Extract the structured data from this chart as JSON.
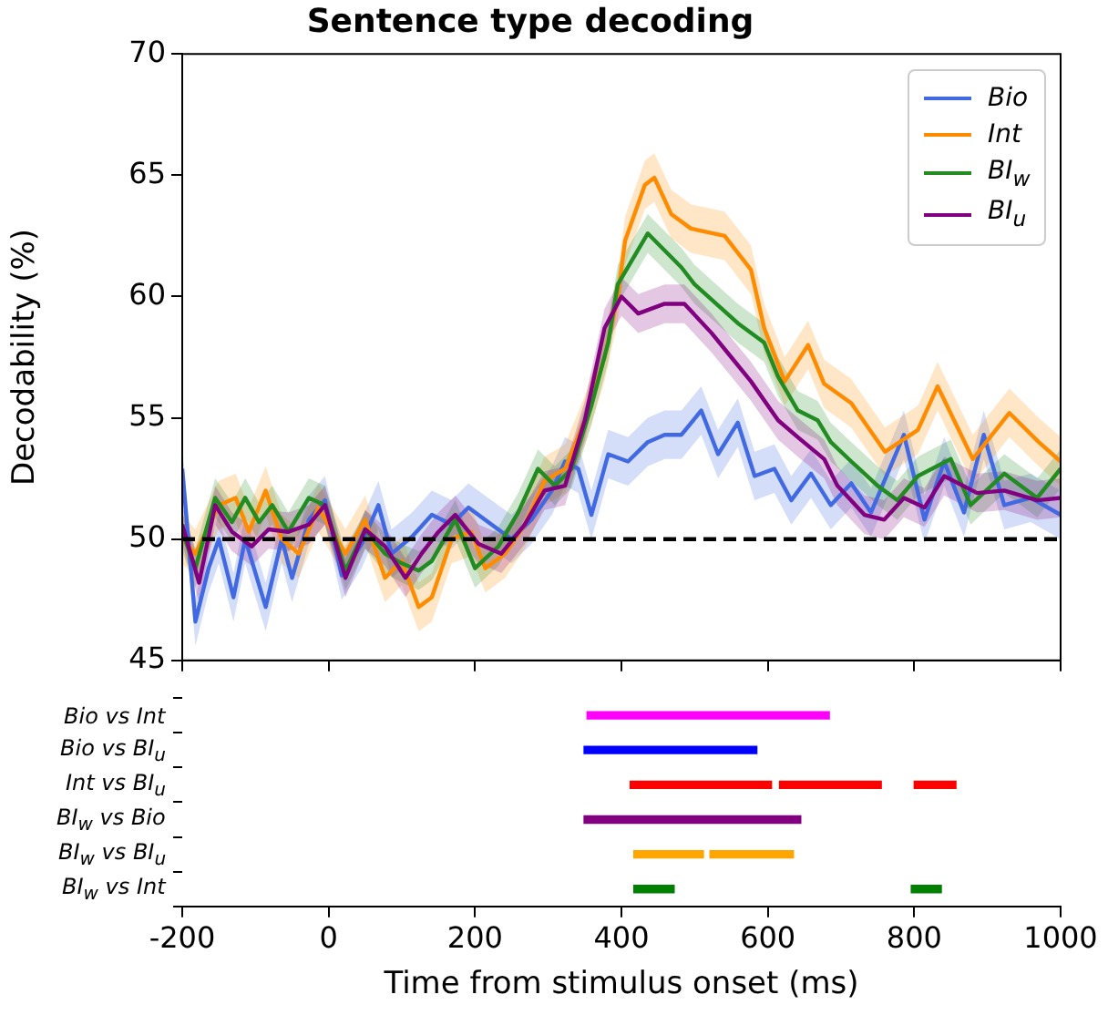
{
  "chart_data": [
    {
      "type": "line",
      "title": "Sentence type decoding",
      "ylabel": "Decodability (%)",
      "xlim": [
        -200,
        1000
      ],
      "xticks": [
        -200,
        0,
        200,
        400,
        600,
        800,
        1000
      ],
      "ylim": [
        45,
        70
      ],
      "yticks": [
        45,
        50,
        55,
        60,
        65,
        70
      ],
      "tick_labels": "y",
      "legend": "top right",
      "ref_lines": [
        {
          "axis": "y",
          "value": 50,
          "color": "#000000",
          "line_style": "dashed"
        }
      ],
      "series": [
        {
          "name": "Bio",
          "color": "#4169e1",
          "x": [
            -200,
            -182,
            -164,
            -150,
            -130,
            -114,
            -86,
            -64,
            -50,
            -27,
            -5,
            18,
            45,
            68,
            86,
            114,
            141,
            168,
            191,
            218,
            250,
            277,
            305,
            323,
            341,
            359,
            382,
            409,
            436,
            459,
            482,
            509,
            532,
            559,
            582,
            609,
            632,
            659,
            686,
            714,
            741,
            786,
            814,
            841,
            868,
            895,
            923,
            959,
            1000
          ],
          "values": [
            52.9,
            46.6,
            48.8,
            50,
            47.6,
            50,
            47.2,
            50,
            48.4,
            50.8,
            51.6,
            48.5,
            49.8,
            51.4,
            49.4,
            50.1,
            51,
            50.6,
            51.3,
            50.7,
            50,
            50.8,
            52,
            53.2,
            52.9,
            51,
            53.5,
            53.2,
            54,
            54.3,
            54.3,
            55.3,
            53.5,
            54.8,
            52.6,
            52.9,
            51.6,
            52.7,
            51.4,
            52.3,
            51.1,
            54.3,
            50.8,
            53.2,
            51.1,
            54.3,
            51.4,
            51.7,
            51
          ],
          "lower": [
            51.9,
            45.6,
            47.8,
            49,
            46.6,
            49,
            46.2,
            49,
            47.4,
            49.8,
            50.6,
            47.5,
            48.8,
            50.4,
            48.4,
            49.1,
            50,
            49.6,
            50.3,
            49.7,
            49,
            49.8,
            51,
            52.2,
            51.9,
            50,
            52.5,
            52.2,
            53,
            53.3,
            53.3,
            54.3,
            52.5,
            53.8,
            51.6,
            51.9,
            50.6,
            51.7,
            50.4,
            51.3,
            50.1,
            53.3,
            49.8,
            52.2,
            50.1,
            53.3,
            50.4,
            50.7,
            50
          ],
          "upper": [
            53.9,
            47.6,
            49.8,
            51,
            48.6,
            51,
            48.2,
            51,
            49.4,
            51.8,
            52.6,
            49.5,
            50.8,
            52.4,
            50.4,
            51.1,
            52,
            51.6,
            52.3,
            51.7,
            51,
            51.8,
            53,
            54.2,
            53.9,
            52,
            54.5,
            54.2,
            55,
            55.3,
            55.3,
            56.3,
            54.5,
            55.8,
            53.6,
            53.9,
            52.6,
            53.7,
            52.4,
            53.3,
            52.1,
            55.3,
            51.8,
            54.2,
            52.1,
            55.3,
            52.4,
            52.7,
            52
          ]
        },
        {
          "name": "Int",
          "color": "#ff8c00",
          "x": [
            -200,
            -182,
            -150,
            -127,
            -109,
            -86,
            -64,
            -41,
            -14,
            23,
            50,
            77,
            100,
            123,
            141,
            168,
            195,
            214,
            241,
            268,
            295,
            323,
            350,
            377,
            395,
            405,
            432,
            445,
            468,
            495,
            541,
            577,
            595,
            623,
            655,
            677,
            714,
            760,
            805,
            832,
            880,
            930,
            970,
            1000
          ],
          "values": [
            50,
            49.4,
            51.4,
            51.7,
            50.3,
            52,
            50,
            49.4,
            51.3,
            49.4,
            50.8,
            48.4,
            49.1,
            47.2,
            47.6,
            50,
            50.3,
            48.8,
            49.4,
            50.6,
            52.4,
            52.9,
            54.9,
            57.5,
            60,
            62.3,
            64.6,
            64.9,
            63.4,
            62.8,
            62.5,
            61.1,
            58.7,
            56.5,
            58,
            56.4,
            55.6,
            53.6,
            54.5,
            56.3,
            53.3,
            55.2,
            54,
            53.2
          ],
          "lower": [
            49,
            48.4,
            50.4,
            50.7,
            49.3,
            51,
            49,
            48.4,
            50.3,
            48.4,
            49.8,
            47.4,
            48.1,
            46.2,
            46.6,
            49,
            49.3,
            47.8,
            48.4,
            49.6,
            51.4,
            51.9,
            53.9,
            56.5,
            59,
            61.3,
            63.6,
            63.9,
            62.4,
            61.8,
            61.5,
            60.1,
            57.7,
            55.5,
            57,
            55.4,
            54.6,
            52.6,
            53.5,
            55.3,
            52.3,
            54.2,
            53,
            52.2
          ],
          "upper": [
            51,
            50.4,
            52.4,
            52.7,
            51.3,
            53,
            51,
            50.4,
            52.3,
            50.4,
            51.8,
            49.4,
            50.1,
            48.2,
            48.6,
            51,
            51.3,
            49.8,
            50.4,
            51.6,
            53.4,
            53.9,
            55.9,
            58.5,
            61,
            63.3,
            65.6,
            65.9,
            64.4,
            63.8,
            63.5,
            62.1,
            59.7,
            57.5,
            59,
            57.4,
            56.6,
            54.6,
            55.5,
            57.3,
            54.3,
            56.2,
            55,
            54.2
          ]
        },
        {
          "name": "BI$_{w}$",
          "color": "#228b22",
          "x": [
            -200,
            -182,
            -155,
            -132,
            -114,
            -95,
            -77,
            -55,
            -27,
            -5,
            23,
            50,
            77,
            100,
            123,
            141,
            173,
            200,
            232,
            259,
            286,
            309,
            332,
            359,
            382,
            395,
            436,
            482,
            500,
            559,
            595,
            614,
            641,
            668,
            686,
            714,
            750,
            777,
            805,
            850,
            877,
            923,
            968,
            1000
          ],
          "values": [
            50.3,
            48.8,
            51.7,
            50.7,
            51.7,
            50.7,
            51.4,
            50.3,
            51.7,
            51.4,
            48.7,
            50.4,
            49.4,
            49,
            48.7,
            49.1,
            50.8,
            48.8,
            49.7,
            51.1,
            52.9,
            52.2,
            52.9,
            55.5,
            58.1,
            60.5,
            62.6,
            61.2,
            60.5,
            58.9,
            58.1,
            56.7,
            55.3,
            54.9,
            54,
            53.2,
            52.2,
            51.6,
            52.6,
            53.3,
            51.4,
            52.7,
            51.7,
            52.9
          ],
          "lower": [
            49.5,
            48,
            50.9,
            49.9,
            50.9,
            49.9,
            50.6,
            49.5,
            50.9,
            50.6,
            47.9,
            49.6,
            48.6,
            48.2,
            47.9,
            48.3,
            50,
            48,
            48.9,
            50.3,
            52.1,
            51.4,
            52.1,
            54.7,
            57.3,
            59.7,
            61.8,
            60.4,
            59.7,
            58.1,
            57.3,
            55.9,
            54.5,
            54.1,
            53.2,
            52.4,
            51.4,
            50.8,
            51.8,
            52.5,
            50.6,
            51.9,
            50.9,
            52.1
          ],
          "upper": [
            51.1,
            49.6,
            52.5,
            51.5,
            52.5,
            51.5,
            52.2,
            51.1,
            52.5,
            52.2,
            49.5,
            51.2,
            50.2,
            49.8,
            49.5,
            49.9,
            51.6,
            49.6,
            50.5,
            51.9,
            53.7,
            53,
            53.7,
            56.3,
            58.9,
            61.3,
            63.4,
            62,
            61.3,
            59.7,
            58.9,
            57.5,
            56.1,
            55.7,
            54.8,
            54,
            53,
            52.4,
            53.4,
            54.1,
            52.2,
            53.5,
            52.5,
            53.7
          ]
        },
        {
          "name": "BI$_{u}$",
          "color": "#800080",
          "x": [
            -200,
            -177,
            -155,
            -132,
            -105,
            -82,
            -55,
            -27,
            -5,
            23,
            50,
            77,
            105,
            127,
            150,
            173,
            205,
            236,
            268,
            295,
            323,
            350,
            377,
            400,
            423,
            459,
            486,
            523,
            550,
            577,
            614,
            641,
            677,
            695,
            732,
            759,
            786,
            814,
            841,
            886,
            923,
            968,
            1000
          ],
          "values": [
            50.6,
            48.2,
            51.4,
            50.3,
            49.7,
            50.4,
            50.3,
            50.6,
            51.4,
            48.4,
            50.4,
            49.7,
            48.4,
            49.4,
            50.3,
            51,
            49.8,
            49.4,
            50.6,
            52,
            52.2,
            54.9,
            58.7,
            60,
            59.3,
            59.7,
            59.7,
            58.5,
            57.5,
            56.5,
            54.9,
            54.2,
            53.3,
            52.2,
            51,
            50.8,
            51.7,
            51.3,
            52.6,
            51.9,
            52,
            51.6,
            51.7
          ],
          "lower": [
            49.8,
            47.4,
            50.6,
            49.5,
            48.9,
            49.6,
            49.5,
            49.8,
            50.6,
            47.6,
            49.6,
            48.9,
            47.6,
            48.6,
            49.5,
            50.2,
            49,
            48.6,
            49.8,
            51.2,
            51.4,
            54.1,
            57.9,
            59.2,
            58.5,
            58.9,
            58.9,
            57.7,
            56.7,
            55.7,
            54.1,
            53.4,
            52.5,
            51.4,
            50.2,
            50,
            50.9,
            50.5,
            51.8,
            51.1,
            51.2,
            50.8,
            50.9
          ],
          "upper": [
            51.4,
            49,
            52.2,
            51.1,
            50.5,
            51.2,
            51.1,
            51.4,
            52.2,
            49.2,
            51.2,
            50.5,
            49.2,
            50.2,
            51.1,
            51.8,
            50.6,
            50.2,
            51.4,
            52.8,
            53,
            55.7,
            59.5,
            60.8,
            60.1,
            60.5,
            60.5,
            59.3,
            58.3,
            57.3,
            55.7,
            55,
            54.1,
            53,
            51.8,
            51.6,
            52.5,
            52.1,
            53.4,
            52.7,
            52.8,
            52.4,
            52.5
          ]
        }
      ]
    },
    {
      "type": "bar",
      "orientation": "horizontal",
      "xlabel": "Time from stimulus onset (ms)",
      "xlim": [
        -200,
        1000
      ],
      "xticks": [
        -200,
        0,
        200,
        400,
        600,
        800,
        1000
      ],
      "categories": [
        "Bio vs Int",
        "Bio vs BI$_{u}$",
        "Int vs BI$_{u}$",
        "BI$_{w}$ vs Bio",
        "BI$_{w}$ vs BI$_{u}$",
        "BI$_{w}$ vs Int"
      ],
      "series": [
        {
          "colors": [
            "#ff00ff",
            "#0000ff",
            "#ff0000",
            "#800080",
            "#ffa500",
            "#008000"
          ],
          "base": [
            353,
            349,
            412,
            349,
            417,
            417
          ],
          "values": [
            331,
            236,
            193,
            296,
            95,
            55
          ]
        },
        {
          "colors": [
            null,
            null,
            "#ff0000",
            null,
            "#ffa500",
            "#008000"
          ],
          "base": [
            null,
            null,
            616,
            null,
            521,
            796
          ],
          "values": [
            null,
            null,
            139,
            null,
            114,
            41
          ]
        },
        {
          "colors": [
            null,
            null,
            "#ff0000",
            null,
            null,
            null
          ],
          "base": [
            null,
            null,
            800,
            null,
            null,
            null
          ],
          "values": [
            null,
            null,
            57,
            null,
            null,
            null
          ]
        }
      ]
    }
  ]
}
